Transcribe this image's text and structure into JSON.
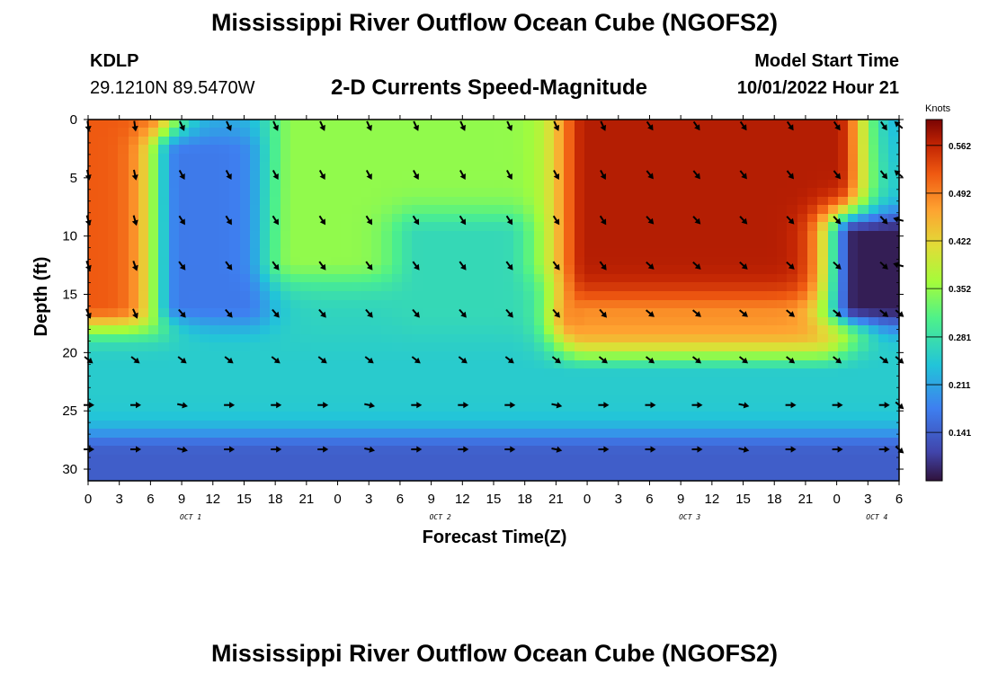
{
  "header": {
    "title": "Mississippi River Outflow Ocean Cube (NGOFS2)",
    "station_id": "KDLP",
    "coordinates": "29.1210N  89.5470W",
    "subtitle": "2-D Currents Speed-Magnitude",
    "model_start_label": "Model Start Time",
    "model_start_value": "10/01/2022 Hour 21"
  },
  "footer": {
    "title": "Mississippi River Outflow Ocean Cube (NGOFS2)"
  },
  "colorbar": {
    "unit": "Knots",
    "ticks": [
      "0.562",
      "0.492",
      "0.422",
      "0.352",
      "0.281",
      "0.211",
      "0.141"
    ]
  },
  "chart_data": {
    "type": "heatmap",
    "title": "2-D Currents Speed-Magnitude",
    "xlabel": "Forecast Time(Z)",
    "ylabel": "Depth (ft)",
    "x_tick_labels": [
      "0",
      "3",
      "6",
      "9",
      "12",
      "15",
      "18",
      "21",
      "0",
      "3",
      "6",
      "9",
      "12",
      "15",
      "18",
      "21",
      "0",
      "3",
      "6",
      "9",
      "12",
      "15",
      "18",
      "21",
      "0",
      "3",
      "6"
    ],
    "day_labels": [
      "OCT 1",
      "OCT 2",
      "OCT 3",
      "OCT 4"
    ],
    "xlim_hours": [
      0,
      78
    ],
    "y_tick_labels": [
      "0",
      "5",
      "10",
      "15",
      "20",
      "25",
      "30"
    ],
    "ylim_ft": [
      0,
      31
    ],
    "color_range_knots": [
      0.07,
      0.6
    ],
    "vector_times_hours": [
      0,
      4.5,
      9,
      13.5,
      18,
      22.5,
      27,
      31.5,
      36,
      40.5,
      45,
      49.5,
      54,
      58.5,
      63,
      67.5,
      72,
      76.5,
      78
    ],
    "vector_depths_ft": [
      0.5,
      4.7,
      8.6,
      12.5,
      16.6,
      20.6,
      24.5,
      28.3
    ],
    "speed_field": [
      {
        "hour_range": [
          0,
          6
        ],
        "depth_range": [
          0,
          16
        ],
        "speed": 0.52
      },
      {
        "hour_range": [
          9,
          15
        ],
        "depth_range": [
          3,
          16
        ],
        "speed": 0.17
      },
      {
        "hour_range": [
          20,
          48
        ],
        "depth_range": [
          0,
          12
        ],
        "speed": 0.35
      },
      {
        "hour_range": [
          32,
          40
        ],
        "depth_range": [
          10,
          16
        ],
        "speed": 0.27
      },
      {
        "hour_range": [
          48,
          72
        ],
        "depth_range": [
          0,
          17
        ],
        "speed": 0.57
      },
      {
        "hour_range": [
          48,
          70
        ],
        "depth_range": [
          17,
          21
        ],
        "speed": 0.48
      },
      {
        "hour_range": [
          74,
          78
        ],
        "depth_range": [
          10,
          16
        ],
        "speed": 0.08
      },
      {
        "hour_range": [
          0,
          78
        ],
        "depth_range": [
          22,
          26
        ],
        "speed": 0.25
      },
      {
        "hour_range": [
          0,
          78
        ],
        "depth_range": [
          29,
          31
        ],
        "speed": 0.14
      }
    ]
  }
}
